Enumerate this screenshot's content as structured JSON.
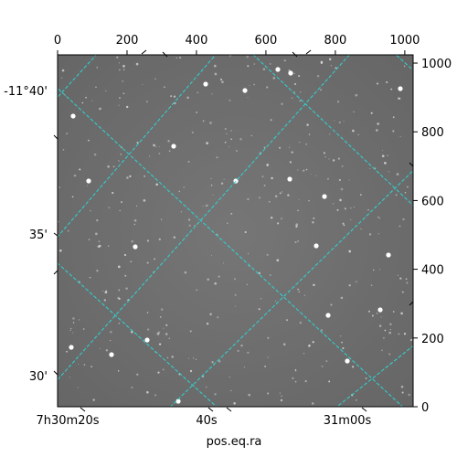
{
  "chart_data": {
    "type": "image",
    "title": "",
    "xlabel": "pos.eq.ra",
    "ylabel": "",
    "pixel_axes": {
      "x": {
        "range": [
          0,
          1024
        ],
        "ticks": [
          0,
          200,
          400,
          600,
          800,
          1000
        ],
        "tick_labels": [
          "0",
          "200",
          "400",
          "600",
          "800",
          "1000"
        ]
      },
      "y": {
        "range": [
          0,
          1024
        ],
        "ticks": [
          0,
          200,
          400,
          600,
          800,
          1000
        ],
        "tick_labels": [
          "0",
          "200",
          "400",
          "600",
          "800",
          "1000"
        ]
      }
    },
    "world_axes": {
      "ra": {
        "label": "pos.eq.ra",
        "tick_labels": [
          "7h30m20s",
          "40s",
          "31m00s"
        ]
      },
      "dec": {
        "tick_labels": [
          "-11°40'",
          "35'",
          "30'"
        ]
      }
    },
    "grid": true,
    "grid_color": "#2fd4d4",
    "background_color": "#6e6e6e"
  }
}
